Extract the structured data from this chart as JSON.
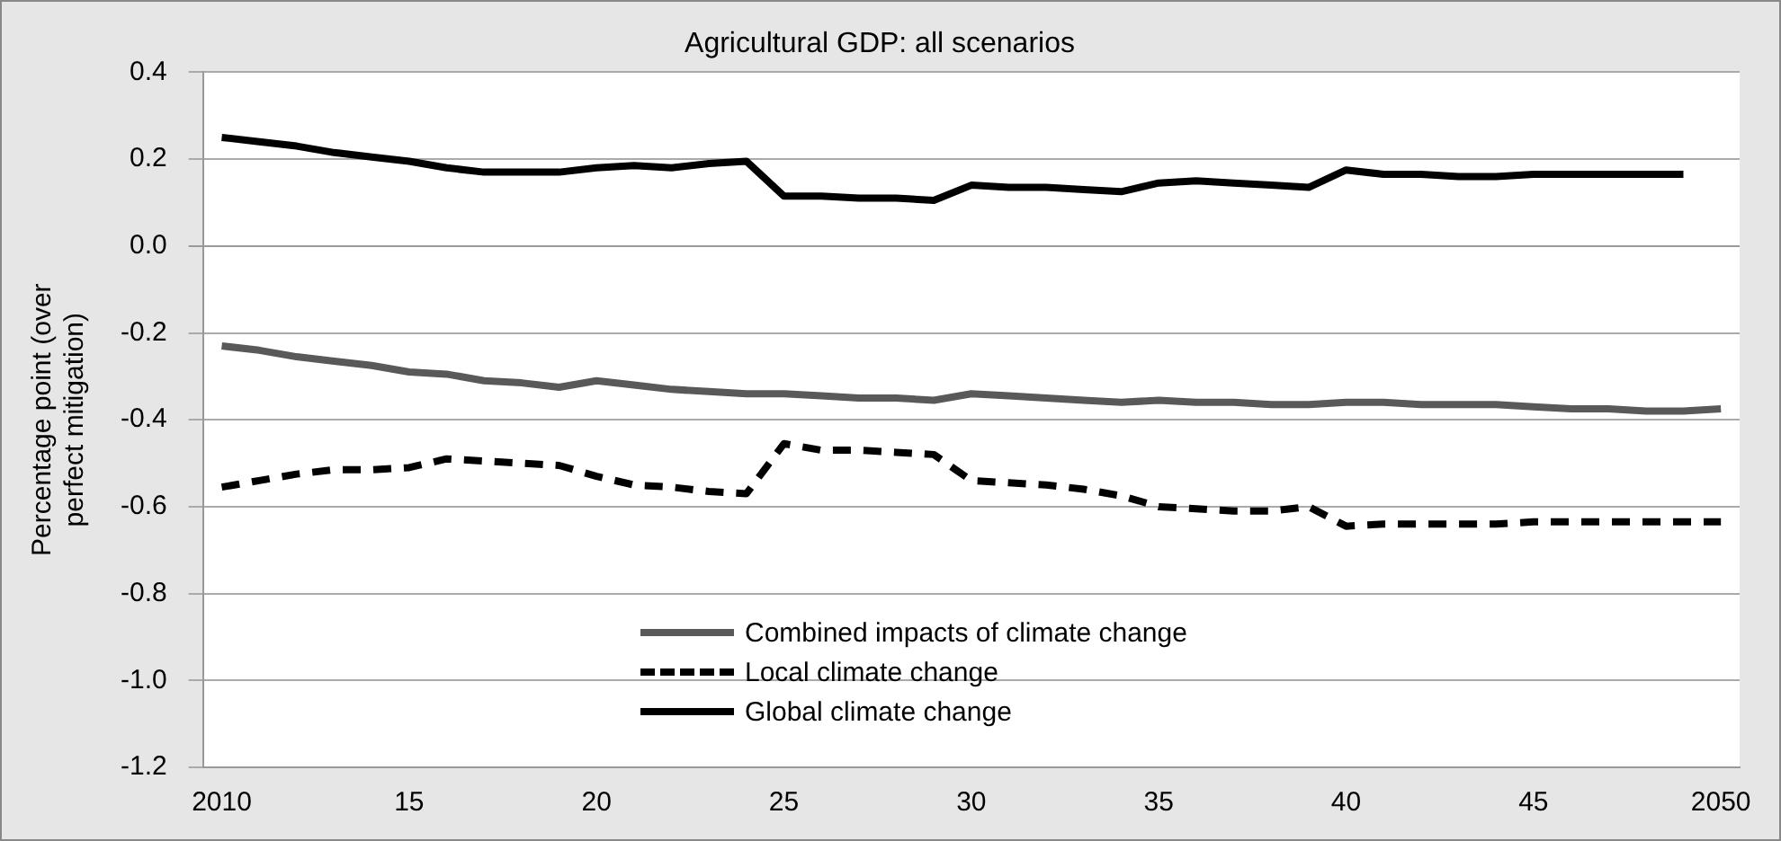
{
  "chart_data": {
    "type": "line",
    "title": "Agricultural GDP: all scenarios",
    "ylabel": "Percentage point (over perfect mitigation)",
    "categories": [
      "2010",
      null,
      null,
      null,
      null,
      "15",
      null,
      null,
      null,
      null,
      "20",
      null,
      null,
      null,
      null,
      "25",
      null,
      null,
      null,
      null,
      "30",
      null,
      null,
      null,
      null,
      "35",
      null,
      null,
      null,
      null,
      "40",
      null,
      null,
      null,
      null,
      "45",
      null,
      null,
      null,
      null,
      "2050"
    ],
    "series": [
      {
        "name": "Combined impacts of climate change",
        "color": "#595959",
        "line_style": "solid",
        "values": [
          -0.23,
          -0.24,
          -0.255,
          -0.265,
          -0.275,
          -0.29,
          -0.295,
          -0.31,
          -0.315,
          -0.325,
          -0.31,
          -0.32,
          -0.33,
          -0.335,
          -0.34,
          -0.34,
          -0.345,
          -0.35,
          -0.35,
          -0.355,
          -0.34,
          -0.345,
          -0.35,
          -0.355,
          -0.36,
          -0.355,
          -0.36,
          -0.36,
          -0.365,
          -0.365,
          -0.36,
          -0.36,
          -0.365,
          -0.365,
          -0.365,
          -0.37,
          -0.375,
          -0.375,
          -0.38,
          -0.38,
          -0.375
        ]
      },
      {
        "name": "Local climate change",
        "color": "#000000",
        "line_style": "dashed",
        "values": [
          -0.555,
          -0.54,
          -0.525,
          -0.515,
          -0.515,
          -0.51,
          -0.49,
          -0.495,
          -0.5,
          -0.505,
          -0.53,
          -0.55,
          -0.555,
          -0.565,
          -0.57,
          -0.455,
          -0.47,
          -0.47,
          -0.475,
          -0.48,
          -0.54,
          -0.545,
          -0.55,
          -0.56,
          -0.575,
          -0.6,
          -0.605,
          -0.61,
          -0.61,
          -0.6,
          -0.645,
          -0.64,
          -0.64,
          -0.64,
          -0.64,
          -0.635,
          -0.635,
          -0.635,
          -0.635,
          -0.635,
          -0.635
        ]
      },
      {
        "name": "Global climate change",
        "color": "#000000",
        "line_style": "solid",
        "values": [
          0.25,
          0.24,
          0.23,
          0.215,
          0.205,
          0.195,
          0.18,
          0.17,
          0.17,
          0.17,
          0.18,
          0.185,
          0.18,
          0.19,
          0.195,
          0.115,
          0.115,
          0.11,
          0.11,
          0.105,
          0.14,
          0.135,
          0.135,
          0.13,
          0.125,
          0.145,
          0.15,
          0.145,
          0.14,
          0.135,
          0.175,
          0.165,
          0.165,
          0.16,
          0.16,
          0.165,
          0.165,
          0.165,
          0.165,
          0.165,
          null
        ]
      }
    ],
    "ylim": [
      -1.2,
      0.4
    ],
    "yticks": [
      {
        "value": -1.2,
        "label": "-1.2"
      },
      {
        "value": -1,
        "label": "-1.0"
      },
      {
        "value": -0.8,
        "label": "-0.8"
      },
      {
        "value": -0.6,
        "label": "-0.6"
      },
      {
        "value": -0.4,
        "label": "-0.4"
      },
      {
        "value": -0.2,
        "label": "-0.2"
      },
      {
        "value": 0,
        "label": "0.0"
      },
      {
        "value": 0.2,
        "label": "0.2"
      },
      {
        "value": 0.4,
        "label": "0.4"
      }
    ],
    "grid": "y",
    "legend": "bottom",
    "marker": "none"
  }
}
